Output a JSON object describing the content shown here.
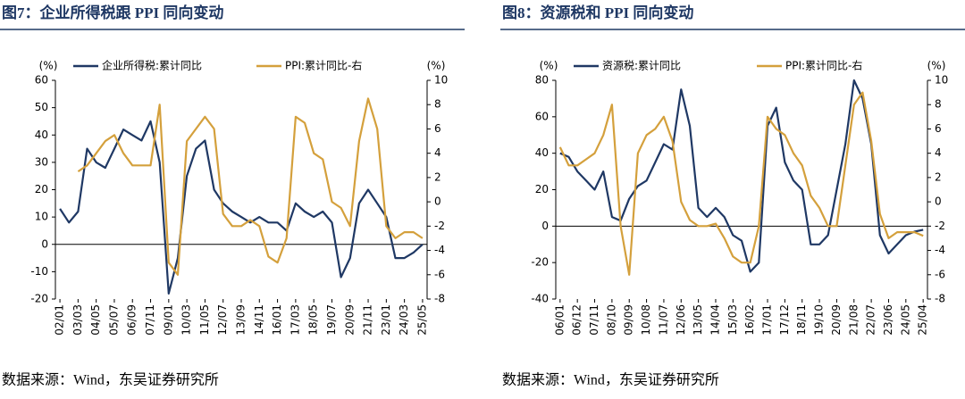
{
  "chart_data": [
    {
      "type": "line",
      "title": "图7：企业所得税跟 PPI 同向变动",
      "source": "数据来源：Wind，东吴证券研究所",
      "y_unit": "(%)",
      "y2_unit": "(%)",
      "categories": [
        "02/01",
        null,
        "03/03",
        null,
        "04/05",
        null,
        "05/07",
        null,
        "06/09",
        null,
        "07/11",
        null,
        "09/01",
        null,
        "10/03",
        null,
        "11/05",
        null,
        "12/07",
        null,
        "13/09",
        null,
        "14/11",
        null,
        "16/01",
        null,
        "17/03",
        null,
        "18/05",
        null,
        "19/07",
        null,
        "20/09",
        null,
        "21/11",
        null,
        "23/01",
        null,
        "24/03",
        null,
        "25/05"
      ],
      "series": [
        {
          "name": "企业所得税:累计同比",
          "color": "#1f3864",
          "values": [
            13,
            8,
            12,
            35,
            30,
            28,
            35,
            42,
            40,
            38,
            45,
            30,
            -18,
            -5,
            25,
            35,
            38,
            20,
            15,
            12,
            10,
            8,
            10,
            8,
            8,
            5,
            15,
            12,
            10,
            12,
            8,
            -12,
            -5,
            15,
            20,
            15,
            10,
            -5,
            -5,
            -3,
            0
          ]
        },
        {
          "name": "PPI:累计同比-右",
          "color": "#d4a03c",
          "axis": "y2",
          "values": [
            null,
            null,
            2.5,
            3,
            4,
            5,
            5.5,
            4,
            3,
            3,
            3,
            8,
            -5,
            -6,
            5,
            6,
            7,
            6,
            -1,
            -2,
            -2,
            -1.5,
            -2,
            -4.5,
            -5,
            -3,
            7,
            6.5,
            4,
            3.5,
            0,
            -0.5,
            -2,
            5,
            8.5,
            6,
            -2,
            -3,
            -2.5,
            -2.5,
            -3
          ]
        }
      ],
      "ylim": [
        -20,
        60
      ],
      "yticks": [
        -20,
        -10,
        0,
        10,
        20,
        30,
        40,
        50,
        60
      ],
      "y2lim": [
        -8,
        10
      ],
      "y2ticks": [
        -8,
        -6,
        -4,
        -2,
        0,
        2,
        4,
        6,
        8,
        10
      ]
    },
    {
      "type": "line",
      "title": "图8：资源税和 PPI 同向变动",
      "source": "数据来源：Wind，东吴证券研究所",
      "y_unit": "(%)",
      "y2_unit": "(%)",
      "categories": [
        "06/01",
        null,
        "06/12",
        null,
        "07/11",
        null,
        "08/10",
        null,
        "09/09",
        null,
        "10/08",
        null,
        "11/07",
        null,
        "12/06",
        null,
        "13/05",
        null,
        "14/04",
        null,
        "15/03",
        null,
        "16/02",
        null,
        "17/01",
        null,
        "17/12",
        null,
        "18/11",
        null,
        "19/10",
        null,
        "20/09",
        null,
        "21/08",
        null,
        "22/07",
        null,
        "23/06",
        null,
        "24/05",
        null,
        "25/04"
      ],
      "series": [
        {
          "name": "资源税:累计同比",
          "color": "#1f3864",
          "values": [
            40,
            38,
            30,
            25,
            20,
            30,
            5,
            3,
            15,
            22,
            25,
            35,
            45,
            42,
            75,
            55,
            10,
            5,
            10,
            5,
            -5,
            -8,
            -25,
            -20,
            55,
            65,
            35,
            25,
            20,
            -10,
            -10,
            -5,
            20,
            45,
            80,
            70,
            45,
            -5,
            -15,
            -10,
            -5,
            -3,
            -2
          ]
        },
        {
          "name": "PPI:累计同比-右",
          "color": "#d4a03c",
          "axis": "y2",
          "values": [
            4.5,
            3,
            3,
            3.5,
            4,
            5.5,
            8,
            -2,
            -6,
            4,
            5.5,
            6,
            7,
            5,
            0,
            -1.5,
            -2,
            -2,
            -1.8,
            -3,
            -4.5,
            -5,
            -5,
            -2,
            7,
            6,
            5.5,
            4,
            3,
            0.5,
            -0.5,
            -2,
            -2,
            3,
            8,
            9,
            5,
            -1,
            -3,
            -2.5,
            -2.5,
            -2.5,
            -2.8
          ]
        }
      ],
      "ylim": [
        -40,
        80
      ],
      "yticks": [
        -40,
        -20,
        0,
        20,
        40,
        60,
        80
      ],
      "y2lim": [
        -8,
        10
      ],
      "y2ticks": [
        -8,
        -6,
        -4,
        -2,
        0,
        2,
        4,
        6,
        8,
        10
      ]
    }
  ]
}
